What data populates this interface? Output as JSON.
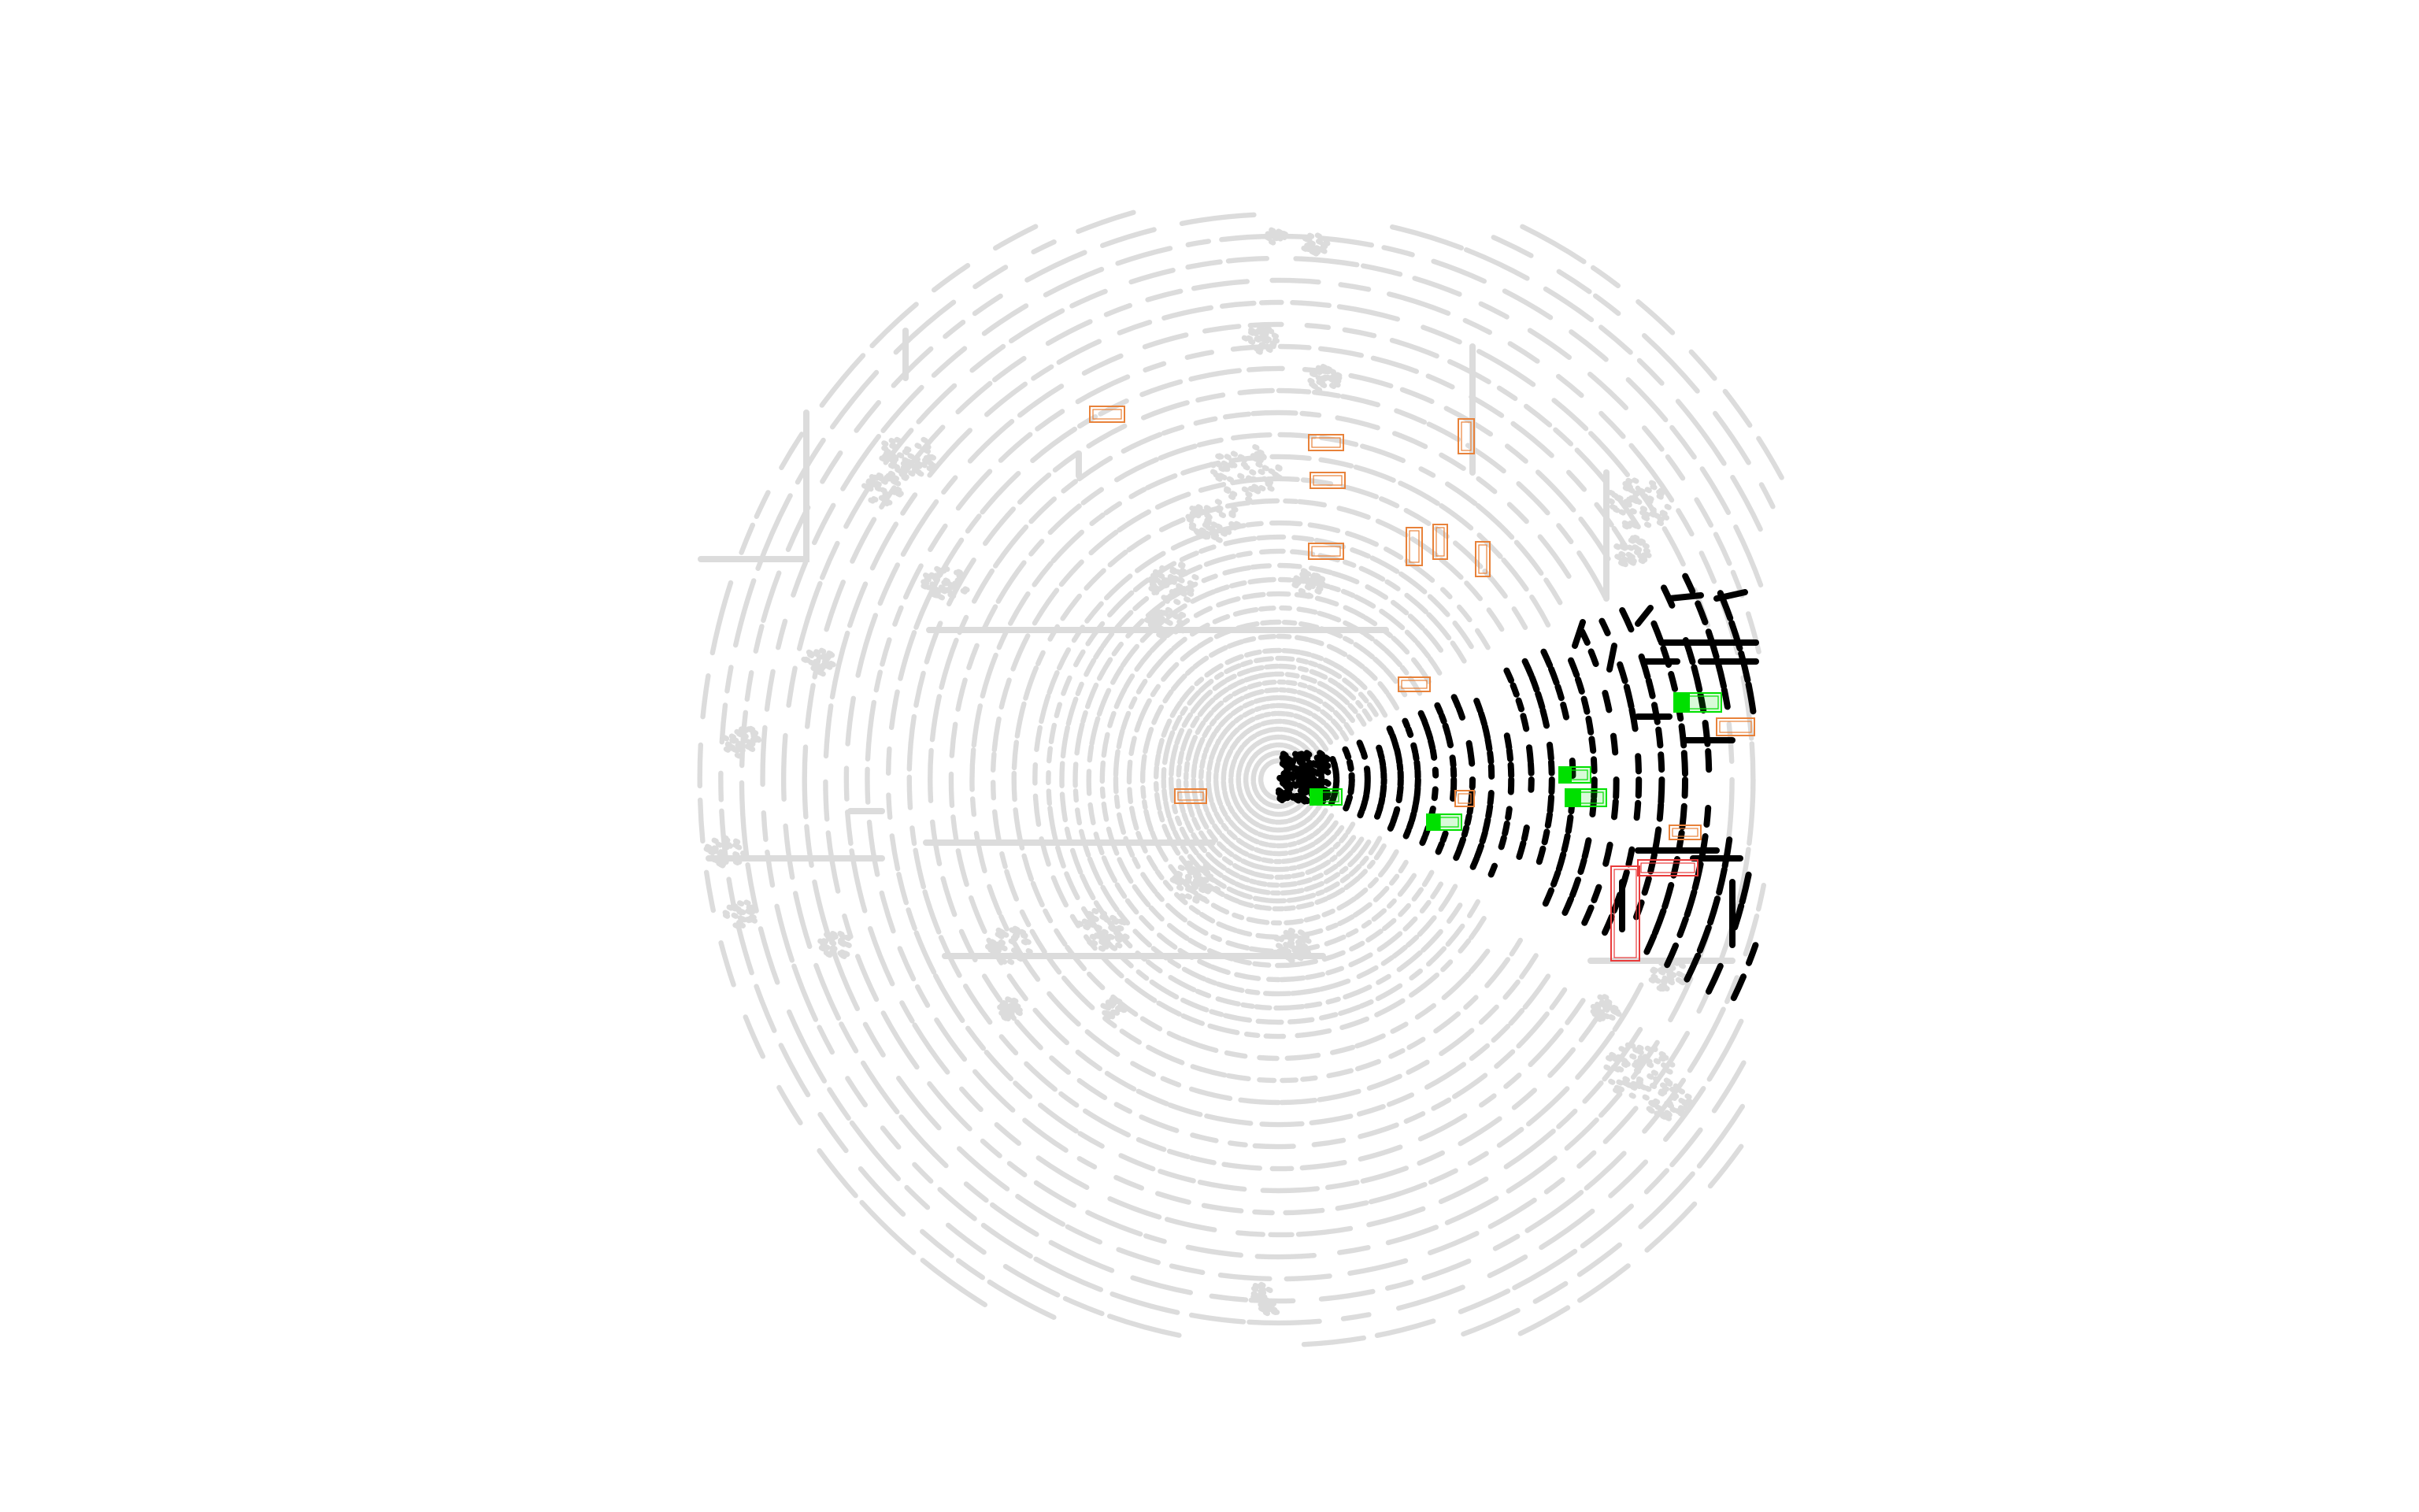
{
  "scene": {
    "background_color": "#ffffff",
    "point_colors": {
      "out_of_view": "#dcdcdc",
      "in_view": "#000000"
    },
    "box_colors": {
      "orange": "#e8823a",
      "green": "#00e000",
      "red": "#e83b3b"
    }
  }
}
